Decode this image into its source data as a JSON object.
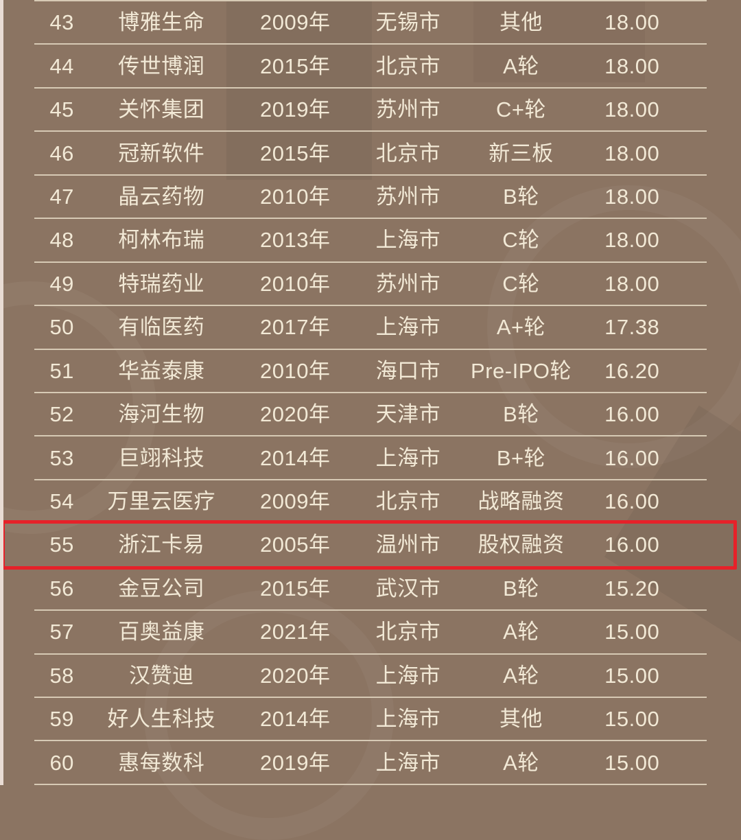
{
  "colors": {
    "background": "#8b7462",
    "text": "#f2e9d6",
    "divider": "#d7cab5",
    "accent_red": "#e62129",
    "left_edge": "#e9dcd4"
  },
  "chart_data": {
    "type": "table",
    "description_columns": [
      "rank",
      "company",
      "year",
      "city",
      "round",
      "amount"
    ],
    "highlighted_rank": "55",
    "rows": [
      {
        "rank": "43",
        "company": "博雅生命",
        "year": "2009年",
        "city": "无锡市",
        "round": "其他",
        "amount": "18.00",
        "highlighted": false
      },
      {
        "rank": "44",
        "company": "传世博润",
        "year": "2015年",
        "city": "北京市",
        "round": "A轮",
        "amount": "18.00",
        "highlighted": false
      },
      {
        "rank": "45",
        "company": "关怀集团",
        "year": "2019年",
        "city": "苏州市",
        "round": "C+轮",
        "amount": "18.00",
        "highlighted": false
      },
      {
        "rank": "46",
        "company": "冠新软件",
        "year": "2015年",
        "city": "北京市",
        "round": "新三板",
        "amount": "18.00",
        "highlighted": false
      },
      {
        "rank": "47",
        "company": "晶云药物",
        "year": "2010年",
        "city": "苏州市",
        "round": "B轮",
        "amount": "18.00",
        "highlighted": false
      },
      {
        "rank": "48",
        "company": "柯林布瑞",
        "year": "2013年",
        "city": "上海市",
        "round": "C轮",
        "amount": "18.00",
        "highlighted": false
      },
      {
        "rank": "49",
        "company": "特瑞药业",
        "year": "2010年",
        "city": "苏州市",
        "round": "C轮",
        "amount": "18.00",
        "highlighted": false
      },
      {
        "rank": "50",
        "company": "有临医药",
        "year": "2017年",
        "city": "上海市",
        "round": "A+轮",
        "amount": "17.38",
        "highlighted": false
      },
      {
        "rank": "51",
        "company": "华益泰康",
        "year": "2010年",
        "city": "海口市",
        "round": "Pre-IPO轮",
        "amount": "16.20",
        "highlighted": false
      },
      {
        "rank": "52",
        "company": "海河生物",
        "year": "2020年",
        "city": "天津市",
        "round": "B轮",
        "amount": "16.00",
        "highlighted": false
      },
      {
        "rank": "53",
        "company": "巨翊科技",
        "year": "2014年",
        "city": "上海市",
        "round": "B+轮",
        "amount": "16.00",
        "highlighted": false
      },
      {
        "rank": "54",
        "company": "万里云医疗",
        "year": "2009年",
        "city": "北京市",
        "round": "战略融资",
        "amount": "16.00",
        "highlighted": false
      },
      {
        "rank": "55",
        "company": "浙江卡易",
        "year": "2005年",
        "city": "温州市",
        "round": "股权融资",
        "amount": "16.00",
        "highlighted": true
      },
      {
        "rank": "56",
        "company": "金豆公司",
        "year": "2015年",
        "city": "武汉市",
        "round": "B轮",
        "amount": "15.20",
        "highlighted": false
      },
      {
        "rank": "57",
        "company": "百奥益康",
        "year": "2021年",
        "city": "北京市",
        "round": "A轮",
        "amount": "15.00",
        "highlighted": false
      },
      {
        "rank": "58",
        "company": "汉赞迪",
        "year": "2020年",
        "city": "上海市",
        "round": "A轮",
        "amount": "15.00",
        "highlighted": false
      },
      {
        "rank": "59",
        "company": "好人生科技",
        "year": "2014年",
        "city": "上海市",
        "round": "其他",
        "amount": "15.00",
        "highlighted": false
      },
      {
        "rank": "60",
        "company": "惠每数科",
        "year": "2019年",
        "city": "上海市",
        "round": "A轮",
        "amount": "15.00",
        "highlighted": false
      }
    ]
  }
}
